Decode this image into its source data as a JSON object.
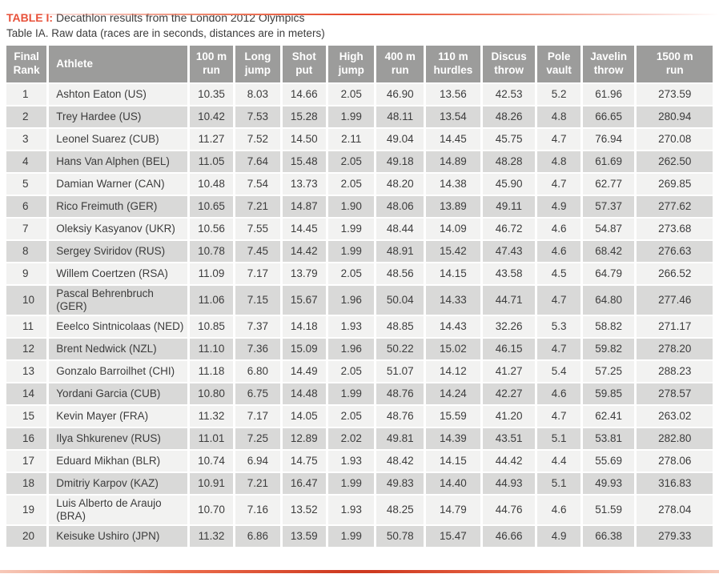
{
  "meta": {
    "accent_color": "#E8513A",
    "header_bg_color": "#9C9C9B",
    "row_light_color": "#F2F2F1",
    "row_dark_color": "#D9D9D8",
    "text_color": "#3C3C3C"
  },
  "caption": {
    "label": "TABLE I:",
    "title": " Decathlon results from the London 2012 Olympics",
    "subtitle": "Table IA. Raw data (races are in seconds, distances are in meters)"
  },
  "table": {
    "columns": [
      {
        "key": "rank",
        "label": "Final\nRank"
      },
      {
        "key": "athlete",
        "label": "Athlete"
      },
      {
        "key": "run100",
        "label": "100 m\nrun"
      },
      {
        "key": "longjump",
        "label": "Long\njump"
      },
      {
        "key": "shotput",
        "label": "Shot\nput"
      },
      {
        "key": "highjump",
        "label": "High\njump"
      },
      {
        "key": "run400",
        "label": "400 m\nrun"
      },
      {
        "key": "hurdles110",
        "label": "110 m\nhurdles"
      },
      {
        "key": "discus",
        "label": "Discus\nthrow"
      },
      {
        "key": "polevault",
        "label": "Pole\nvault"
      },
      {
        "key": "javelin",
        "label": "Javelin\nthrow"
      },
      {
        "key": "run1500",
        "label": "1500 m\nrun"
      }
    ],
    "rows": [
      {
        "rank": "1",
        "athlete": "Ashton Eaton (US)",
        "values": [
          "10.35",
          "8.03",
          "14.66",
          "2.05",
          "46.90",
          "13.56",
          "42.53",
          "5.2",
          "61.96",
          "273.59"
        ]
      },
      {
        "rank": "2",
        "athlete": "Trey Hardee (US)",
        "values": [
          "10.42",
          "7.53",
          "15.28",
          "1.99",
          "48.11",
          "13.54",
          "48.26",
          "4.8",
          "66.65",
          "280.94"
        ]
      },
      {
        "rank": "3",
        "athlete": "Leonel Suarez (CUB)",
        "values": [
          "11.27",
          "7.52",
          "14.50",
          "2.11",
          "49.04",
          "14.45",
          "45.75",
          "4.7",
          "76.94",
          "270.08"
        ]
      },
      {
        "rank": "4",
        "athlete": "Hans Van Alphen (BEL)",
        "values": [
          "11.05",
          "7.64",
          "15.48",
          "2.05",
          "49.18",
          "14.89",
          "48.28",
          "4.8",
          "61.69",
          "262.50"
        ]
      },
      {
        "rank": "5",
        "athlete": "Damian Warner (CAN)",
        "values": [
          "10.48",
          "7.54",
          "13.73",
          "2.05",
          "48.20",
          "14.38",
          "45.90",
          "4.7",
          "62.77",
          "269.85"
        ]
      },
      {
        "rank": "6",
        "athlete": "Rico Freimuth (GER)",
        "values": [
          "10.65",
          "7.21",
          "14.87",
          "1.90",
          "48.06",
          "13.89",
          "49.11",
          "4.9",
          "57.37",
          "277.62"
        ]
      },
      {
        "rank": "7",
        "athlete": "Oleksiy Kasyanov (UKR)",
        "values": [
          "10.56",
          "7.55",
          "14.45",
          "1.99",
          "48.44",
          "14.09",
          "46.72",
          "4.6",
          "54.87",
          "273.68"
        ]
      },
      {
        "rank": "8",
        "athlete": "Sergey Sviridov (RUS)",
        "values": [
          "10.78",
          "7.45",
          "14.42",
          "1.99",
          "48.91",
          "15.42",
          "47.43",
          "4.6",
          "68.42",
          "276.63"
        ]
      },
      {
        "rank": "9",
        "athlete": "Willem Coertzen (RSA)",
        "values": [
          "11.09",
          "7.17",
          "13.79",
          "2.05",
          "48.56",
          "14.15",
          "43.58",
          "4.5",
          "64.79",
          "266.52"
        ]
      },
      {
        "rank": "10",
        "athlete": "Pascal Behrenbruch (GER)",
        "values": [
          "11.06",
          "7.15",
          "15.67",
          "1.96",
          "50.04",
          "14.33",
          "44.71",
          "4.7",
          "64.80",
          "277.46"
        ]
      },
      {
        "rank": "11",
        "athlete": "Eeelco Sintnicolaas (NED)",
        "values": [
          "10.85",
          "7.37",
          "14.18",
          "1.93",
          "48.85",
          "14.43",
          "32.26",
          "5.3",
          "58.82",
          "271.17"
        ]
      },
      {
        "rank": "12",
        "athlete": "Brent Nedwick (NZL)",
        "values": [
          "11.10",
          "7.36",
          "15.09",
          "1.96",
          "50.22",
          "15.02",
          "46.15",
          "4.7",
          "59.82",
          "278.20"
        ]
      },
      {
        "rank": "13",
        "athlete": "Gonzalo Barroilhet (CHI)",
        "values": [
          "11.18",
          "6.80",
          "14.49",
          "2.05",
          "51.07",
          "14.12",
          "41.27",
          "5.4",
          "57.25",
          "288.23"
        ]
      },
      {
        "rank": "14",
        "athlete": "Yordani Garcia (CUB)",
        "values": [
          "10.80",
          "6.75",
          "14.48",
          "1.99",
          "48.76",
          "14.24",
          "42.27",
          "4.6",
          "59.85",
          "278.57"
        ]
      },
      {
        "rank": "15",
        "athlete": "Kevin Mayer (FRA)",
        "values": [
          "11.32",
          "7.17",
          "14.05",
          "2.05",
          "48.76",
          "15.59",
          "41.20",
          "4.7",
          "62.41",
          "263.02"
        ]
      },
      {
        "rank": "16",
        "athlete": "Ilya Shkurenev (RUS)",
        "values": [
          "11.01",
          "7.25",
          "12.89",
          "2.02",
          "49.81",
          "14.39",
          "43.51",
          "5.1",
          "53.81",
          "282.80"
        ]
      },
      {
        "rank": "17",
        "athlete": "Eduard Mikhan (BLR)",
        "values": [
          "10.74",
          "6.94",
          "14.75",
          "1.93",
          "48.42",
          "14.15",
          "44.42",
          "4.4",
          "55.69",
          "278.06"
        ]
      },
      {
        "rank": "18",
        "athlete": "Dmitriy Karpov (KAZ)",
        "values": [
          "10.91",
          "7.21",
          "16.47",
          "1.99",
          "49.83",
          "14.40",
          "44.93",
          "5.1",
          "49.93",
          "316.83"
        ]
      },
      {
        "rank": "19",
        "athlete": "Luis Alberto de Araujo (BRA)",
        "values": [
          "10.70",
          "7.16",
          "13.52",
          "1.93",
          "48.25",
          "14.79",
          "44.76",
          "4.6",
          "51.59",
          "278.04"
        ]
      },
      {
        "rank": "20",
        "athlete": "Keisuke Ushiro (JPN)",
        "values": [
          "11.32",
          "6.86",
          "13.59",
          "1.99",
          "50.78",
          "15.47",
          "46.66",
          "4.9",
          "66.38",
          "279.33"
        ]
      }
    ]
  }
}
